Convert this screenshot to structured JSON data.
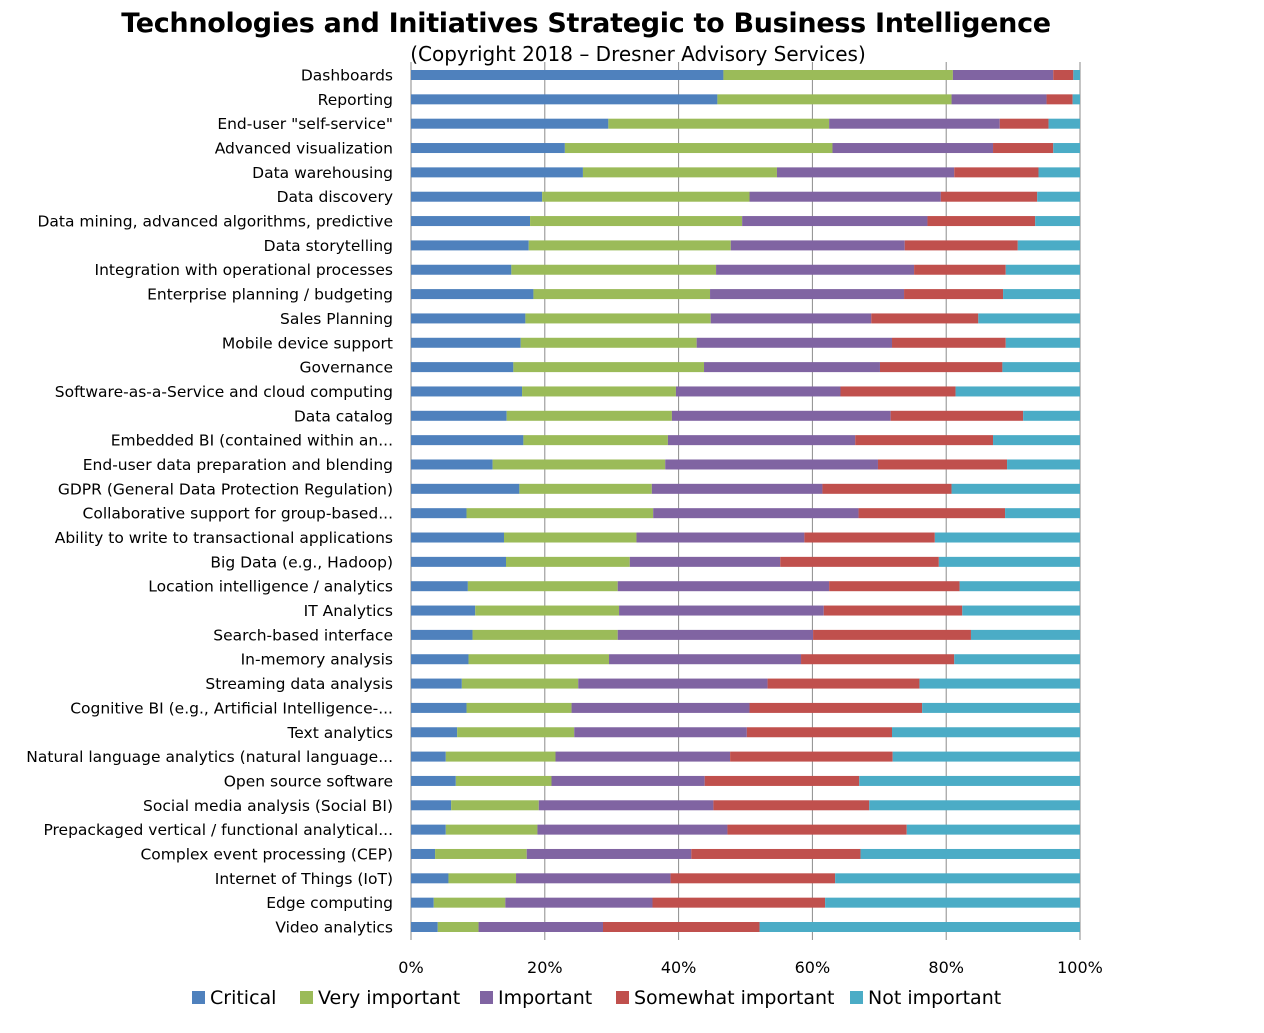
{
  "chart_data": {
    "type": "bar",
    "orientation": "horizontal",
    "stacked": true,
    "percent": true,
    "title": "Technologies and Initiatives Strategic to Business Intelligence",
    "subtitle": "(Copyright 2018 – Dresner Advisory Services)",
    "xlim": [
      0,
      100
    ],
    "xticks": [
      "0%",
      "20%",
      "40%",
      "60%",
      "80%",
      "100%"
    ],
    "grid": "vertical",
    "legend_position": "bottom",
    "categories": [
      "Dashboards",
      "Reporting",
      "End-user \"self-service\"",
      "Advanced visualization",
      "Data warehousing",
      "Data discovery",
      "Data mining, advanced algorithms, predictive",
      "Data storytelling",
      "Integration with operational processes",
      "Enterprise planning / budgeting",
      "Sales Planning",
      "Mobile device support",
      "Governance",
      "Software-as-a-Service and cloud computing",
      "Data catalog",
      "Embedded BI (contained within an...",
      "End-user data preparation and blending",
      "GDPR (General Data Protection Regulation)",
      "Collaborative support for group-based...",
      "Ability to write to transactional applications",
      "Big Data (e.g., Hadoop)",
      "Location intelligence / analytics",
      "IT Analytics",
      "Search-based interface",
      "In-memory analysis",
      "Streaming data analysis",
      "Cognitive BI (e.g., Artificial Intelligence-...",
      "Text analytics",
      "Natural language analytics (natural language...",
      "Open source software",
      "Social media analysis (Social BI)",
      "Prepackaged vertical / functional analytical...",
      "Complex event processing (CEP)",
      "Internet of Things (IoT)",
      "Edge computing",
      "Video analytics"
    ],
    "series": [
      {
        "name": "Critical",
        "color": "#4f81bd",
        "values": [
          46.7,
          45.8,
          29.5,
          23.0,
          25.7,
          19.6,
          17.8,
          17.6,
          15.0,
          18.3,
          17.1,
          16.4,
          15.3,
          16.6,
          14.3,
          16.8,
          12.2,
          16.2,
          8.3,
          13.9,
          14.2,
          8.5,
          9.6,
          9.2,
          8.6,
          7.6,
          8.3,
          6.9,
          5.2,
          6.7,
          6.0,
          5.2,
          3.6,
          5.6,
          3.4,
          4.0
        ]
      },
      {
        "name": "Very important",
        "color": "#9bbb59",
        "values": [
          34.3,
          35.0,
          33.0,
          40.0,
          29.0,
          31.0,
          31.7,
          30.2,
          30.6,
          26.4,
          27.7,
          26.3,
          28.5,
          23.0,
          24.7,
          21.6,
          25.8,
          19.8,
          27.9,
          19.8,
          18.5,
          22.4,
          21.5,
          21.7,
          21.0,
          17.4,
          15.7,
          17.5,
          16.4,
          14.3,
          13.1,
          13.7,
          13.7,
          10.1,
          10.7,
          6.1
        ]
      },
      {
        "name": "Important",
        "color": "#8064a2",
        "values": [
          15.0,
          14.2,
          25.5,
          24.0,
          26.5,
          28.6,
          27.7,
          26.0,
          29.6,
          29.0,
          24.0,
          29.2,
          26.3,
          24.6,
          32.7,
          28.0,
          31.8,
          25.5,
          30.7,
          25.1,
          22.5,
          31.6,
          30.6,
          29.2,
          28.7,
          28.3,
          26.6,
          25.8,
          26.1,
          22.9,
          26.1,
          28.4,
          24.6,
          23.1,
          22.0,
          18.6
        ]
      },
      {
        "name": "Somewhat important",
        "color": "#c0504d",
        "values": [
          3.0,
          3.9,
          7.3,
          9.0,
          12.6,
          14.4,
          16.1,
          16.9,
          13.7,
          14.8,
          16.0,
          17.0,
          18.3,
          17.2,
          19.8,
          20.6,
          19.3,
          19.3,
          21.9,
          19.5,
          23.7,
          19.5,
          20.7,
          23.6,
          22.9,
          22.7,
          25.8,
          21.7,
          24.3,
          23.1,
          23.3,
          26.8,
          25.3,
          24.6,
          25.8,
          23.4
        ]
      },
      {
        "name": "Not important",
        "color": "#4bacc6",
        "values": [
          1.0,
          1.1,
          4.7,
          4.0,
          6.2,
          6.4,
          6.7,
          9.3,
          11.1,
          11.5,
          15.2,
          11.1,
          11.6,
          18.6,
          8.5,
          13.0,
          10.9,
          19.2,
          11.2,
          21.7,
          21.1,
          18.0,
          17.6,
          16.3,
          18.8,
          24.0,
          23.6,
          28.1,
          28.0,
          33.0,
          31.5,
          25.9,
          32.8,
          36.6,
          38.1,
          47.9
        ]
      }
    ]
  }
}
